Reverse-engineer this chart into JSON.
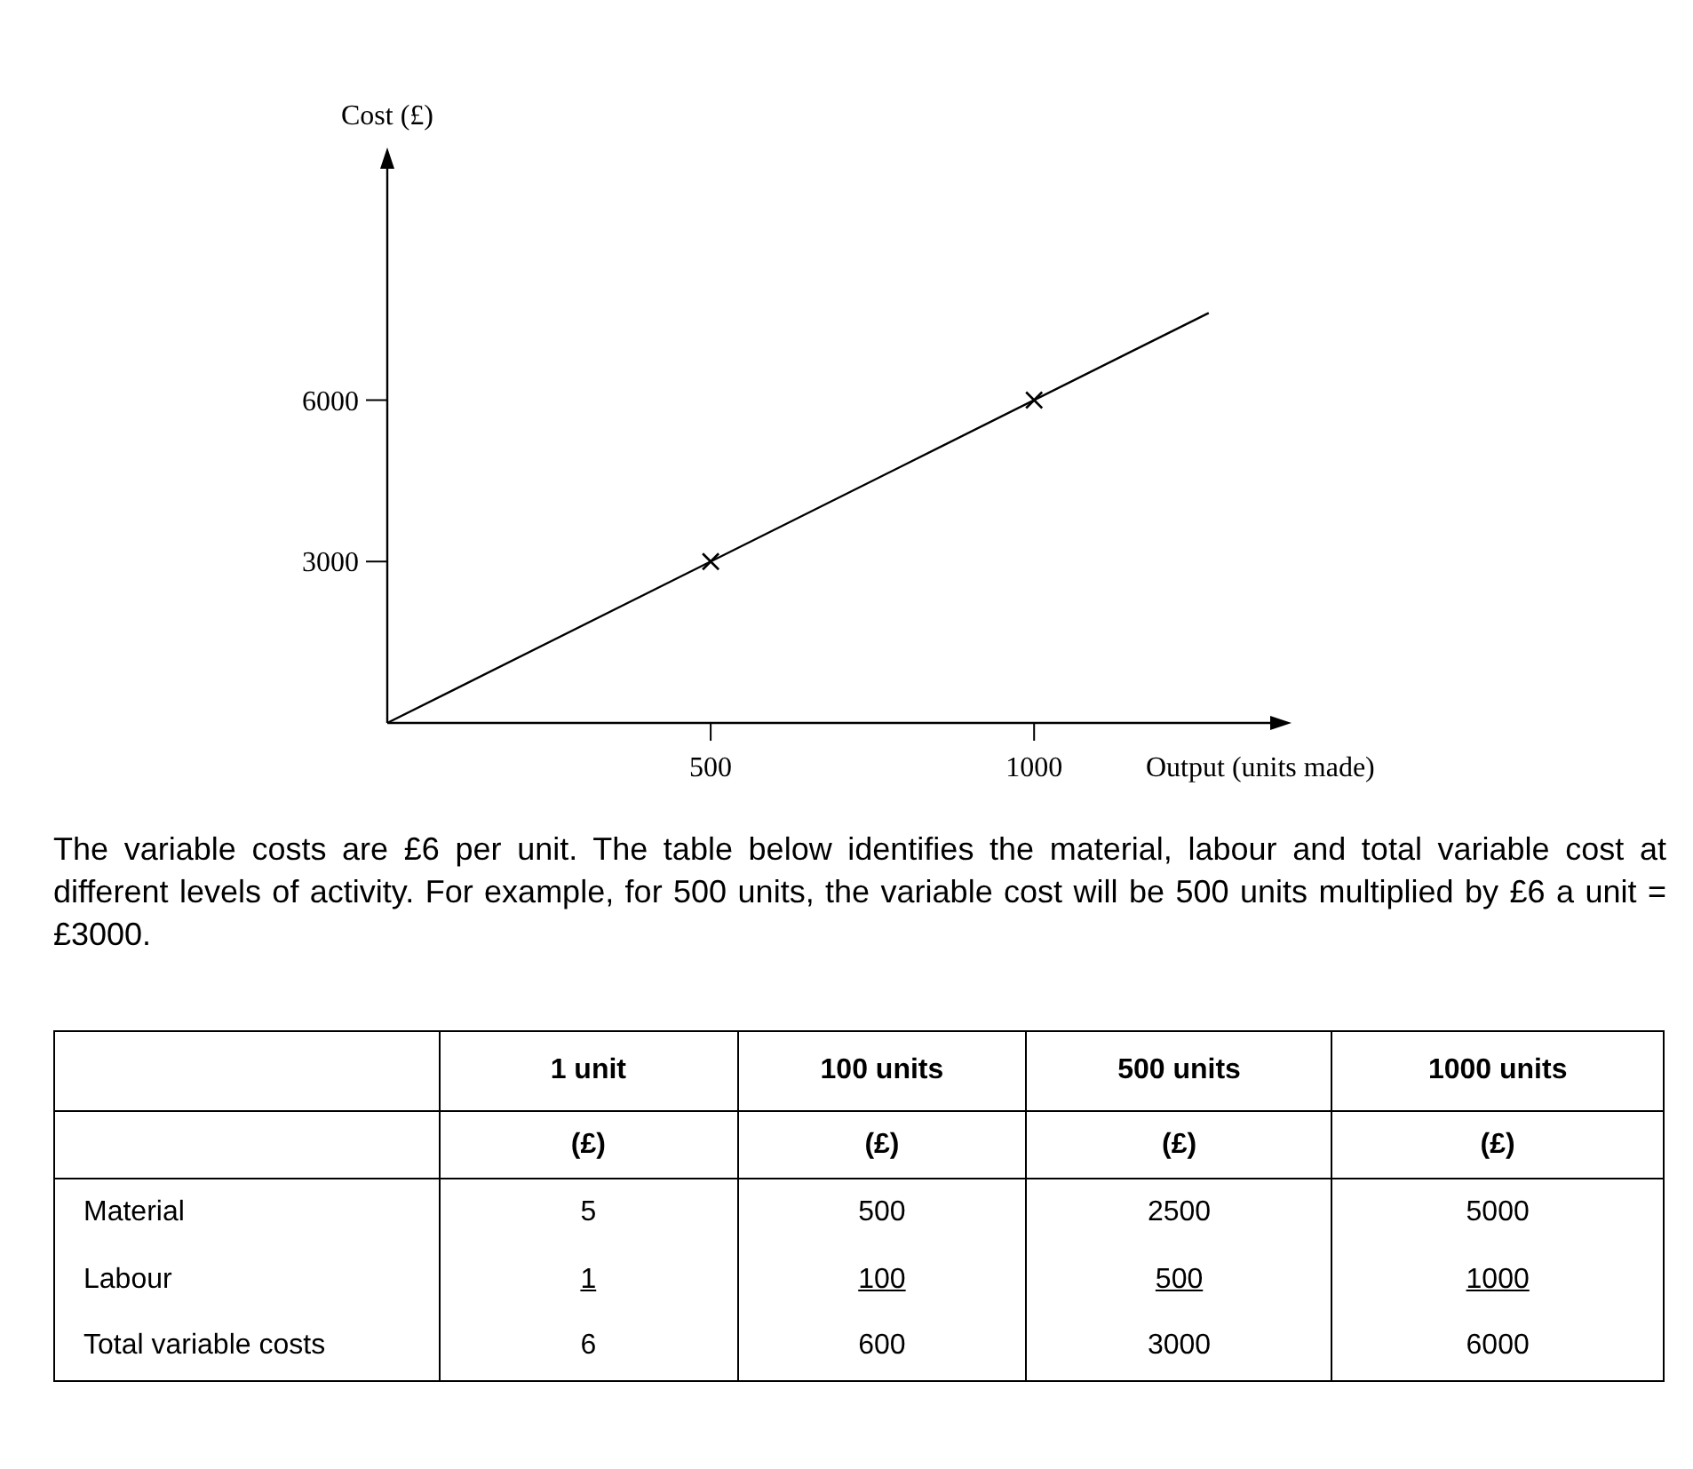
{
  "chart_data": [
    {
      "type": "line",
      "xlabel": "Output (units made)",
      "ylabel": "Cost (£)",
      "xlim": [
        0,
        1365
      ],
      "ylim": [
        0,
        10300
      ],
      "xticks": [
        500,
        1000
      ],
      "yticks": [
        3000,
        6000
      ],
      "series": [
        {
          "type": "line",
          "color": "#000000",
          "marker": "none",
          "x": [
            0,
            1270
          ],
          "values": [
            0,
            7620
          ]
        },
        {
          "type": "scatter",
          "color": "#000000",
          "marker": "cross",
          "x": [
            500,
            1000
          ],
          "values": [
            3000,
            6000
          ]
        }
      ],
      "annotations": [
        "The variable costs are £6 per unit. The table below identifies the material, labour and total variable cost at different levels of activity. For example, for 500 units, the variable cost will be 500 units multiplied by £6 a unit = £3000."
      ]
    },
    {
      "type": "other",
      "categories": [
        "1 unit",
        "100 units",
        "500 units",
        "1000 units"
      ],
      "y_categories": [
        "Material",
        "Labour",
        "Total variable costs"
      ],
      "annotations": [
        "(£)"
      ],
      "cell_labels": [
        [
          "5",
          "500",
          "2500",
          "5000"
        ],
        [
          "1",
          "100",
          "500",
          "1000"
        ],
        [
          "6",
          "600",
          "3000",
          "6000"
        ]
      ]
    }
  ]
}
